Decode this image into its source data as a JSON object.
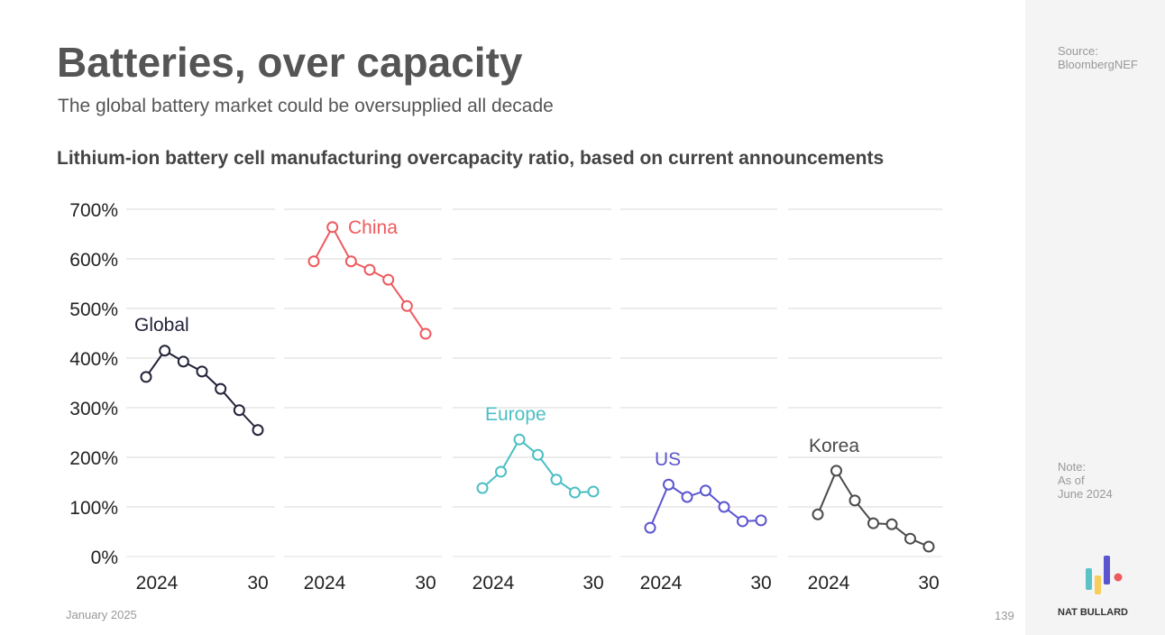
{
  "title": "Batteries, over capacity",
  "subtitle": "The global battery market could be oversupplied all decade",
  "source_label": "Source:",
  "source": "BloombergNEF",
  "note_label": "Note:",
  "note_line1": "As of",
  "note_line2": "June 2024",
  "date": "January 2025",
  "page": "139",
  "brand": "NAT BULLARD",
  "chart_data": {
    "type": "line",
    "title": "Lithium-ion battery cell manufacturing overcapacity ratio, based on current announcements",
    "x": [
      2024,
      2025,
      2026,
      2027,
      2028,
      2029,
      2030
    ],
    "x_tick_labels": [
      "2024",
      "30"
    ],
    "y_ticks": [
      "0%",
      "100%",
      "200%",
      "300%",
      "400%",
      "500%",
      "600%",
      "700%"
    ],
    "ylim": [
      0,
      700
    ],
    "grid": true,
    "series": [
      {
        "name": "Global",
        "color": "#22223a",
        "values": [
          362,
          415,
          393,
          373,
          338,
          295,
          255
        ]
      },
      {
        "name": "China",
        "color": "#ee5a5e",
        "values": [
          595,
          664,
          595,
          578,
          558,
          505,
          449
        ]
      },
      {
        "name": "Europe",
        "color": "#4cbfc4",
        "values": [
          138,
          171,
          236,
          205,
          155,
          129,
          131
        ]
      },
      {
        "name": "US",
        "color": "#5b55cf",
        "values": [
          58,
          145,
          120,
          133,
          100,
          71,
          73
        ]
      },
      {
        "name": "Korea",
        "color": "#4a4a4a",
        "values": [
          85,
          173,
          113,
          67,
          65,
          36,
          20
        ]
      }
    ]
  }
}
